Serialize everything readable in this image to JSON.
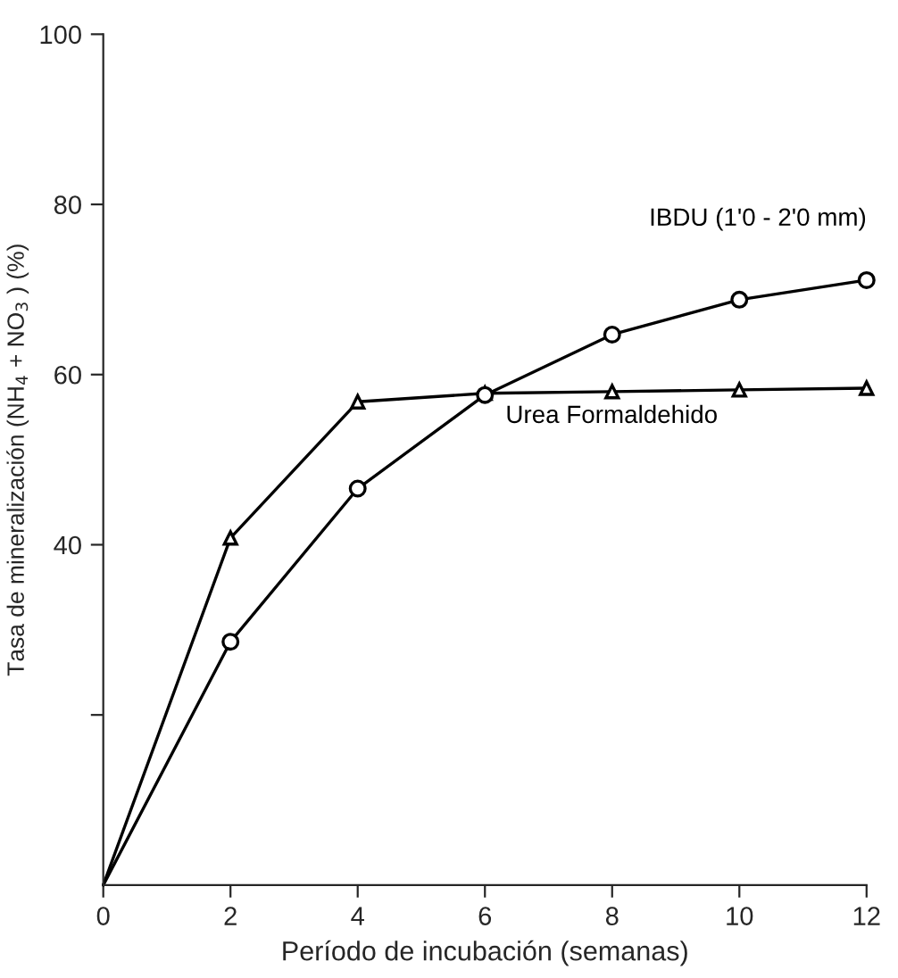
{
  "chart_data": {
    "type": "line",
    "xlabel": "Período de incubación (semanas)",
    "ylabel": "Tasa de mineralización (NH$_{4}$ + NO$_{3}$ ) (%)",
    "x": [
      0,
      2,
      4,
      6,
      8,
      10,
      12
    ],
    "series": [
      {
        "name": "IBDU (1'0 - 2'0 mm)",
        "color": "#000000",
        "marker": "circle",
        "values": [
          0,
          28.6,
          46.6,
          57.6,
          64.7,
          68.8,
          71.1
        ]
      },
      {
        "name": "Urea Formaldehido",
        "color": "#000000",
        "marker": "triangle",
        "values": [
          0,
          40.8,
          56.8,
          57.8,
          58,
          58.2,
          58.4
        ]
      }
    ],
    "xlim": [
      0,
      12
    ],
    "ylim": [
      0,
      100
    ],
    "xticks": [
      0,
      2,
      4,
      6,
      8,
      10,
      12
    ],
    "yticks": [
      {
        "value": 20,
        "label": null
      },
      40,
      60,
      80,
      100
    ],
    "grid": false,
    "legend": false,
    "line_style": "solid"
  }
}
